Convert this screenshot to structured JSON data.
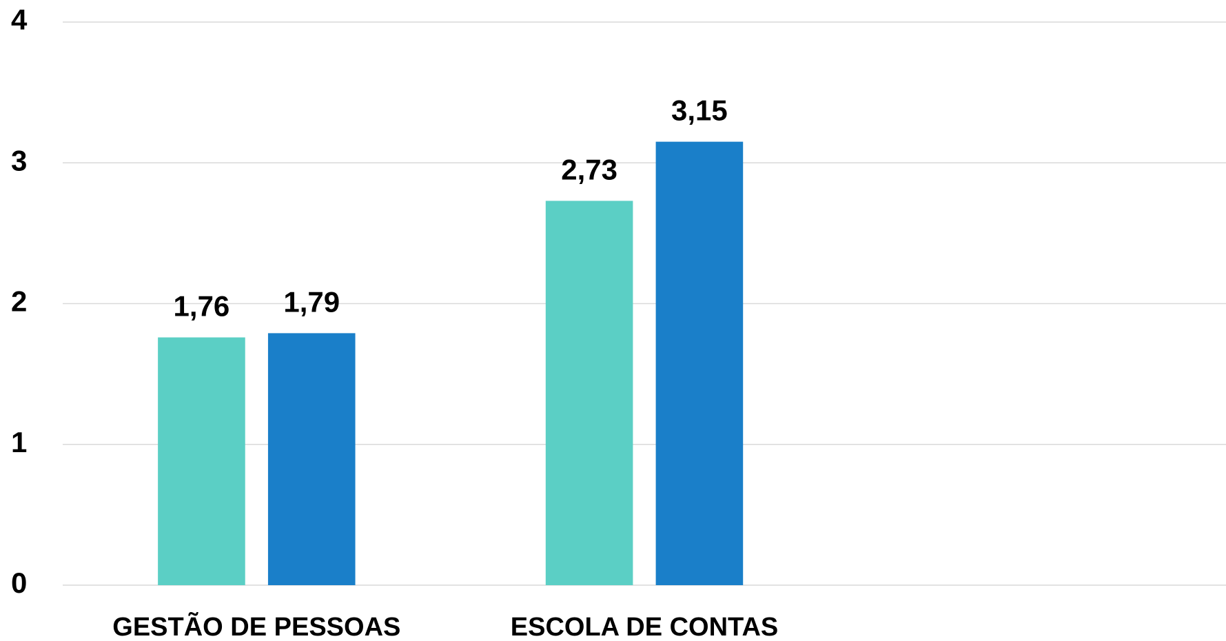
{
  "chart_data": {
    "type": "bar",
    "categories": [
      "GESTÃO DE PESSOAS",
      "ESCOLA DE CONTAS",
      null
    ],
    "series": [
      {
        "color": "#5bcfc5",
        "values": [
          1.76,
          2.73,
          null
        ],
        "value_labels": [
          "1,76",
          "2,73",
          null
        ]
      },
      {
        "color": "#1a7fc9",
        "values": [
          1.79,
          3.15,
          null
        ],
        "value_labels": [
          "1,79",
          "3,15",
          null
        ]
      }
    ],
    "ylim": [
      0,
      4
    ],
    "yticks": [
      0,
      1,
      2,
      3,
      4
    ],
    "grid": true
  }
}
